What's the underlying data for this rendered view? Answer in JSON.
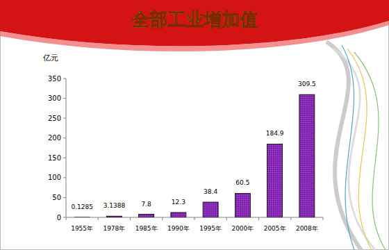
{
  "chart_data": {
    "type": "bar",
    "title": "全部工业增加值",
    "y_label": "亿元",
    "categories": [
      "1955年",
      "1978年",
      "1985年",
      "1990年",
      "1995年",
      "2000年",
      "2005年",
      "2008年"
    ],
    "values": [
      0.1285,
      3.1388,
      7.8,
      12.3,
      38.4,
      60.5,
      184.9,
      309.5
    ],
    "color": "#9933cc",
    "ylim": [
      0,
      350
    ],
    "yticks": [
      0,
      50,
      100,
      150,
      200,
      250,
      300,
      350
    ],
    "grid": false,
    "data_labels": true
  }
}
